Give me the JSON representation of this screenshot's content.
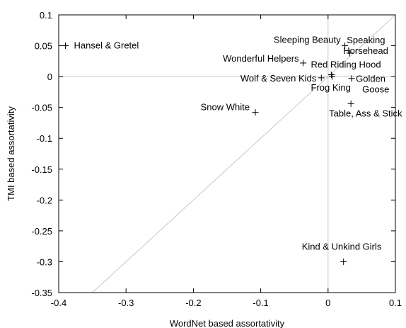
{
  "chart_data": {
    "type": "scatter",
    "xlabel": "WordNet based assortativity",
    "ylabel": "TMI based assortativity",
    "xlim": [
      -0.4,
      0.1
    ],
    "ylim": [
      -0.35,
      0.1
    ],
    "xticks": [
      -0.4,
      -0.3,
      -0.2,
      -0.1,
      0,
      0.1
    ],
    "xtick_labels": [
      "-0.4",
      "-0.3",
      "-0.2",
      "-0.1",
      "0",
      "0.1"
    ],
    "yticks": [
      0.1,
      0.05,
      0,
      -0.05,
      -0.1,
      -0.15,
      -0.2,
      -0.25,
      -0.3,
      -0.35
    ],
    "ytick_labels": [
      "0.1",
      "0.05",
      "0",
      "-0.05",
      "-0.1",
      "-0.15",
      "-0.2",
      "-0.25",
      "-0.3",
      "-0.35"
    ],
    "grid": false,
    "reference_lines": [
      "y = x diagonal",
      "x = 0",
      "y = 0"
    ],
    "marker": "+",
    "points": [
      {
        "label": "Hansel & Gretel",
        "x": -0.39,
        "y": 0.05
      },
      {
        "label": "Sleeping Beauty",
        "x": 0.025,
        "y": 0.05
      },
      {
        "label": "Speaking Horsehead",
        "x": 0.032,
        "y": 0.038
      },
      {
        "label": "Wonderful Helpers",
        "x": -0.037,
        "y": 0.022
      },
      {
        "label": "Red Riding Hood",
        "x": 0.005,
        "y": 0.003
      },
      {
        "label": "Wolf & Seven Kids",
        "x": -0.01,
        "y": -0.002
      },
      {
        "label": "Golden Goose",
        "x": 0.035,
        "y": -0.003
      },
      {
        "label": "Frog King",
        "x": 0.006,
        "y": 0.0
      },
      {
        "label": "Snow White",
        "x": -0.108,
        "y": -0.058
      },
      {
        "label": "Table, Ass & Stick",
        "x": 0.034,
        "y": -0.044
      },
      {
        "label": "Kind & Unkind Girls",
        "x": 0.023,
        "y": -0.3
      }
    ]
  }
}
